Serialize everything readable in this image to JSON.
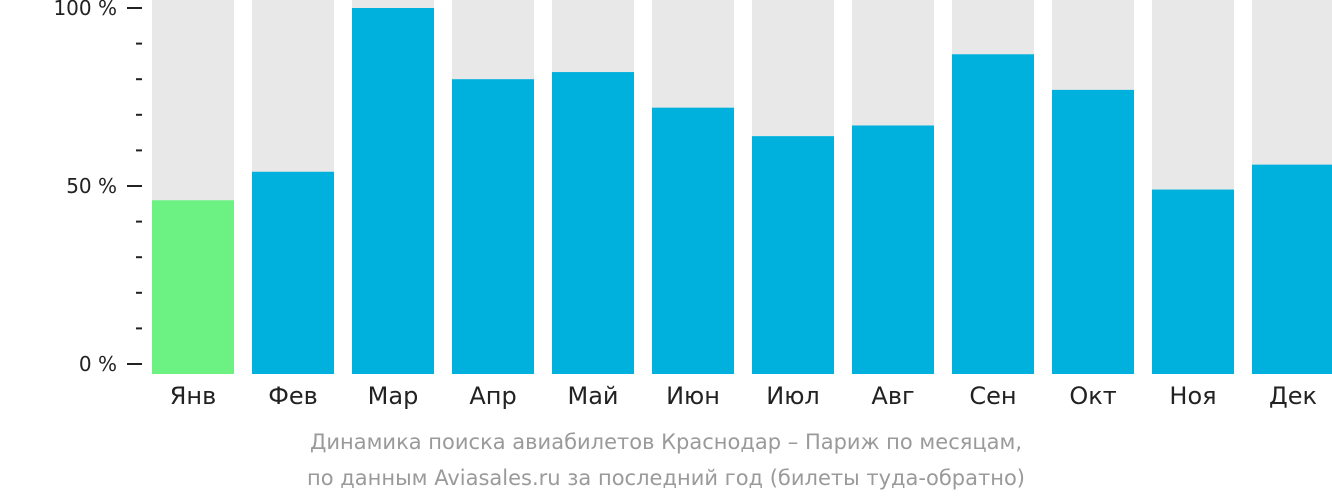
{
  "chart_data": {
    "type": "bar",
    "categories": [
      "Янв",
      "Фев",
      "Мар",
      "Апр",
      "Май",
      "Июн",
      "Июл",
      "Авг",
      "Сен",
      "Окт",
      "Ноя",
      "Дек"
    ],
    "values": [
      46,
      54,
      100,
      80,
      82,
      72,
      64,
      67,
      87,
      77,
      49,
      56
    ],
    "ylim": [
      0,
      100
    ],
    "yticks": [
      {
        "value": 0,
        "label": "0 %"
      },
      {
        "value": 50,
        "label": "50 %"
      },
      {
        "value": 100,
        "label": "100 %"
      }
    ],
    "minor_tick_step": 10,
    "highlight_index": 0,
    "grid": false,
    "colors": {
      "bar": "#00b0dd",
      "highlight": "#6cf283",
      "background_bar": "#e8e8e8",
      "axis": "#222222"
    }
  },
  "caption": {
    "line1": "Динамика поиска авиабилетов Краснодар – Париж по месяцам,",
    "line2": "по данным Aviasales.ru за последний год (билеты туда-обратно)"
  }
}
